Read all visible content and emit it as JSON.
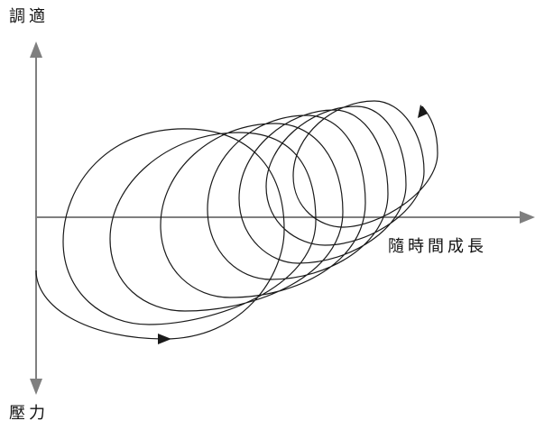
{
  "labels": {
    "y_positive": "調適",
    "y_negative": "壓力",
    "x_axis": "隨時間成長"
  },
  "colors": {
    "axis": "#7f7f7f",
    "curve": "#1a1a1a"
  }
}
